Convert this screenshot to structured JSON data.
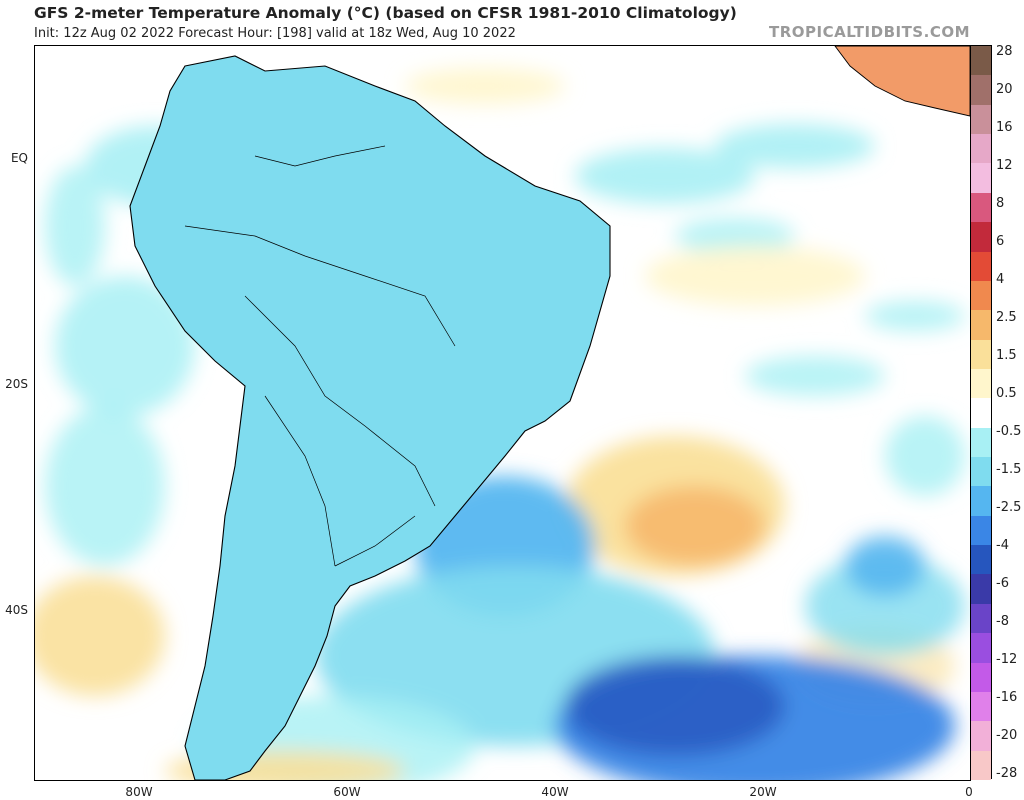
{
  "header": {
    "title": "GFS 2-meter Temperature Anomaly (°C) (based on CFSR 1981-2010 Climatology)",
    "subtitle": "Init: 12z Aug 02 2022   Forecast Hour: [198]   valid at 18z Wed, Aug 10 2022",
    "brand": "TROPICALTIDBITS.COM"
  },
  "axes": {
    "y_labels": [
      "EQ",
      "20S",
      "40S"
    ],
    "x_labels": [
      "80W",
      "60W",
      "40W",
      "20W",
      "0"
    ]
  },
  "colorbar": {
    "labels": [
      "28",
      "20",
      "16",
      "12",
      "8",
      "6",
      "4",
      "2.5",
      "1.5",
      "0.5",
      "-0.5",
      "-1.5",
      "-2.5",
      "-4",
      "-6",
      "-8",
      "-12",
      "-16",
      "-20",
      "-28"
    ],
    "colors": [
      "#7a5a48",
      "#a0706a",
      "#c9909a",
      "#e6a8c8",
      "#f3bde0",
      "#d9587e",
      "#c22a3b",
      "#e34b36",
      "#f0894e",
      "#f6b86b",
      "#fae09a",
      "#fff6cc",
      "#ffffff",
      "#a8f0f4",
      "#7fdcef",
      "#55b6f0",
      "#3a86e6",
      "#2656be",
      "#3a3aa8",
      "#6a44c8",
      "#9a4ee0",
      "#c35ae8",
      "#e080ea",
      "#f2b0d8",
      "#f8c8c8"
    ]
  }
}
